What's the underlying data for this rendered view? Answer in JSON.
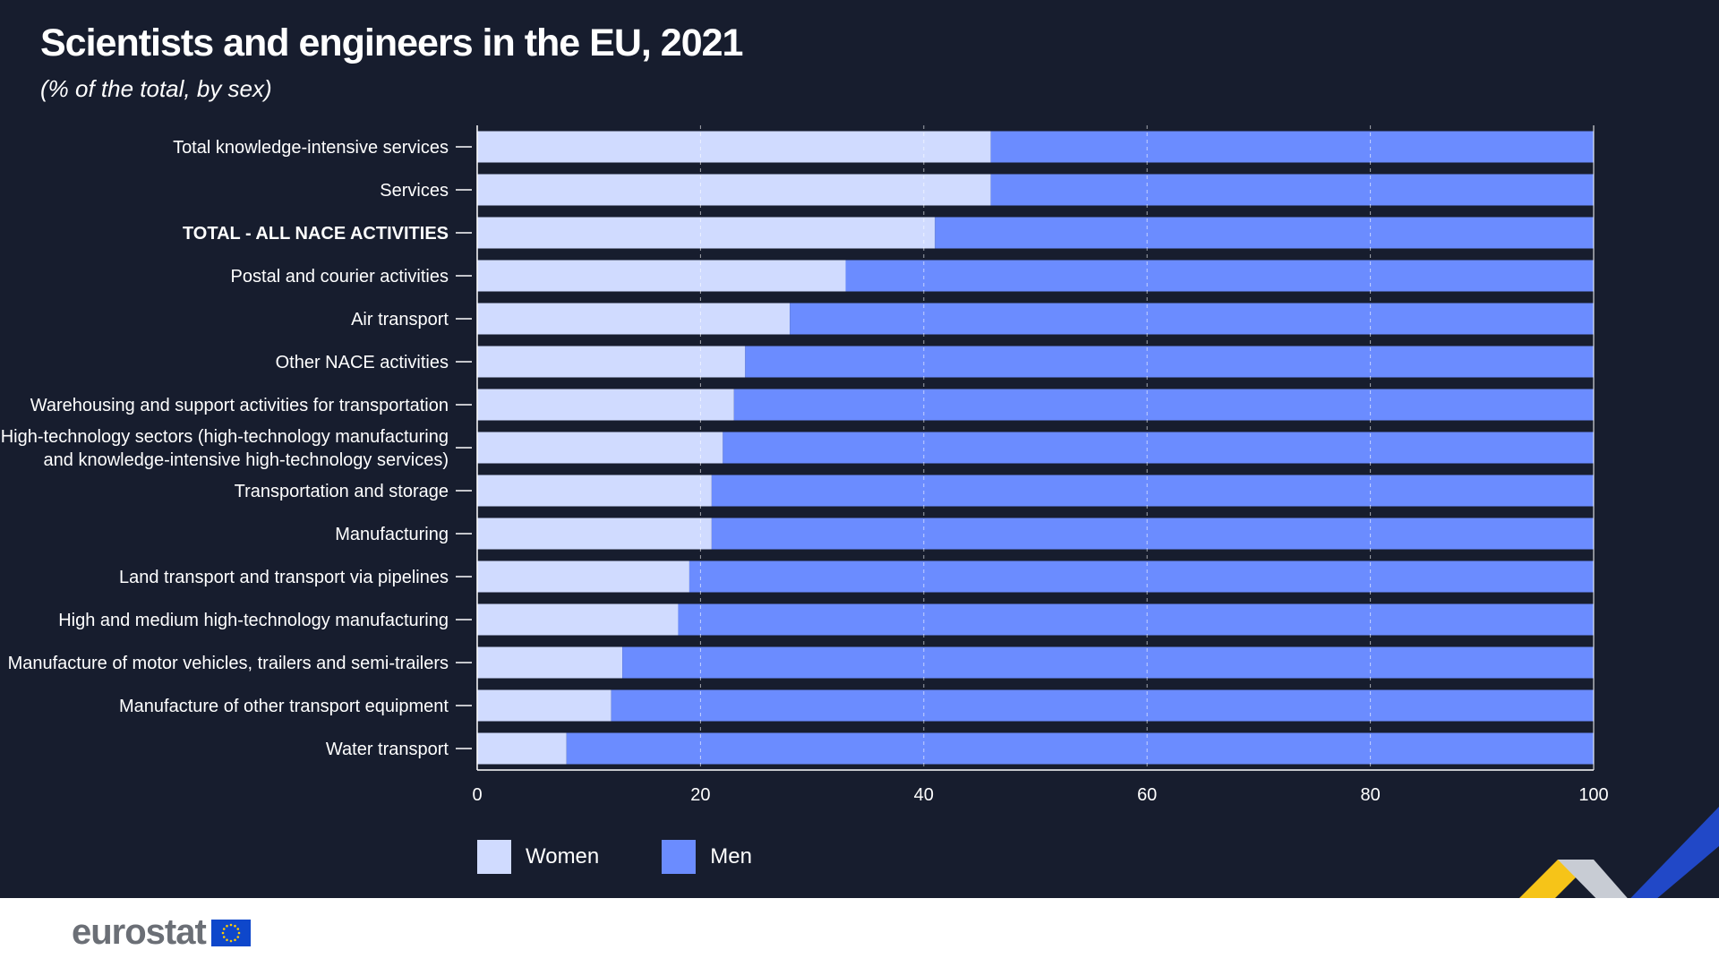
{
  "title": "Scientists and engineers in the EU, 2021",
  "subtitle": "(% of the total, by sex)",
  "colors": {
    "women": "#d0dbff",
    "men": "#6b8cff",
    "background": "#171d2e"
  },
  "chart_data": {
    "type": "bar",
    "orientation": "horizontal",
    "stacked": true,
    "title": "Scientists and engineers in the EU, 2021",
    "subtitle": "(% of the total, by sex)",
    "categories": [
      "Total knowledge-intensive services",
      "Services",
      "TOTAL - ALL NACE ACTIVITIES",
      "Postal and courier activities",
      "Air transport",
      "Other NACE activities",
      "Warehousing and support activities for transportation",
      "High-technology sectors (high-technology manufacturing|and knowledge-intensive high-technology services)",
      "Transportation and storage",
      "Manufacturing",
      "Land transport and transport via pipelines",
      "High and medium high-technology manufacturing",
      "Manufacture of motor vehicles, trailers and semi-trailers",
      "Manufacture of other transport equipment",
      "Water transport"
    ],
    "bold_categories": [
      "TOTAL - ALL NACE ACTIVITIES"
    ],
    "series": [
      {
        "name": "Women",
        "values": [
          46,
          46,
          41,
          33,
          28,
          24,
          23,
          22,
          21,
          21,
          19,
          18,
          13,
          12,
          8
        ]
      },
      {
        "name": "Men",
        "values": [
          54,
          54,
          59,
          67,
          72,
          76,
          77,
          78,
          79,
          79,
          81,
          82,
          87,
          88,
          92
        ]
      }
    ],
    "xlim": [
      0,
      100
    ],
    "xticks": [
      0,
      20,
      40,
      60,
      80,
      100
    ],
    "grid": "vertical dashed",
    "legend_position": "bottom-left"
  },
  "legend": {
    "women": "Women",
    "men": "Men"
  },
  "footer": {
    "logo_text": "eurostat"
  }
}
